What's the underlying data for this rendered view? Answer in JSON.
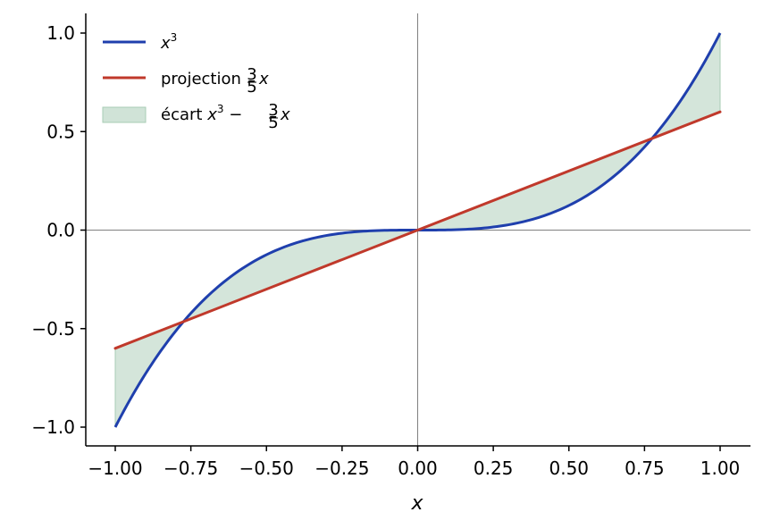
{
  "chart_data": {
    "type": "line",
    "title": "",
    "xlabel": "x",
    "ylabel": "",
    "xlim": [
      -1.1,
      1.1
    ],
    "ylim": [
      -1.1,
      1.1
    ],
    "xticks": [
      -1.0,
      -0.75,
      -0.5,
      -0.25,
      0.0,
      0.25,
      0.5,
      0.75,
      1.0
    ],
    "xtick_labels": [
      "−1.00",
      "−0.75",
      "−0.50",
      "−0.25",
      "0.00",
      "0.25",
      "0.50",
      "0.75",
      "1.00"
    ],
    "yticks": [
      -1.0,
      -0.5,
      0.0,
      0.5,
      1.0
    ],
    "ytick_labels": [
      "−1.0",
      "−0.5",
      "0.0",
      "0.5",
      "1.0"
    ],
    "x_domain": [
      -1.0,
      1.0
    ],
    "series": [
      {
        "name": "x³",
        "function": "cube",
        "color": "#1f3fad",
        "x": [
          -1.0,
          -0.75,
          -0.5,
          -0.25,
          0.0,
          0.25,
          0.5,
          0.75,
          1.0
        ],
        "values": [
          -1.0,
          -0.421875,
          -0.125,
          -0.015625,
          0.0,
          0.015625,
          0.125,
          0.421875,
          1.0
        ]
      },
      {
        "name": "projection 3/5 x",
        "function": "linear",
        "slope": 0.6,
        "color": "#c0392b",
        "x": [
          -1.0,
          1.0
        ],
        "values": [
          -0.6,
          0.6
        ]
      }
    ],
    "fill_between": {
      "name": "écart x³ − 3/5 x",
      "color": "#a9ccb6"
    },
    "reference_lines": {
      "x": 0,
      "y": 0,
      "color": "#808080"
    },
    "legend": {
      "position": "top-left",
      "items": [
        {
          "text": "x",
          "sup": "3"
        },
        {
          "text": "projection ",
          "frac_num": "3",
          "frac_den": "5",
          "var": "x"
        },
        {
          "text": "écart ",
          "var1": "x",
          "sup": "3",
          "op": " − ",
          "frac_num": "3",
          "frac_den": "5",
          "var": "x"
        }
      ]
    }
  }
}
